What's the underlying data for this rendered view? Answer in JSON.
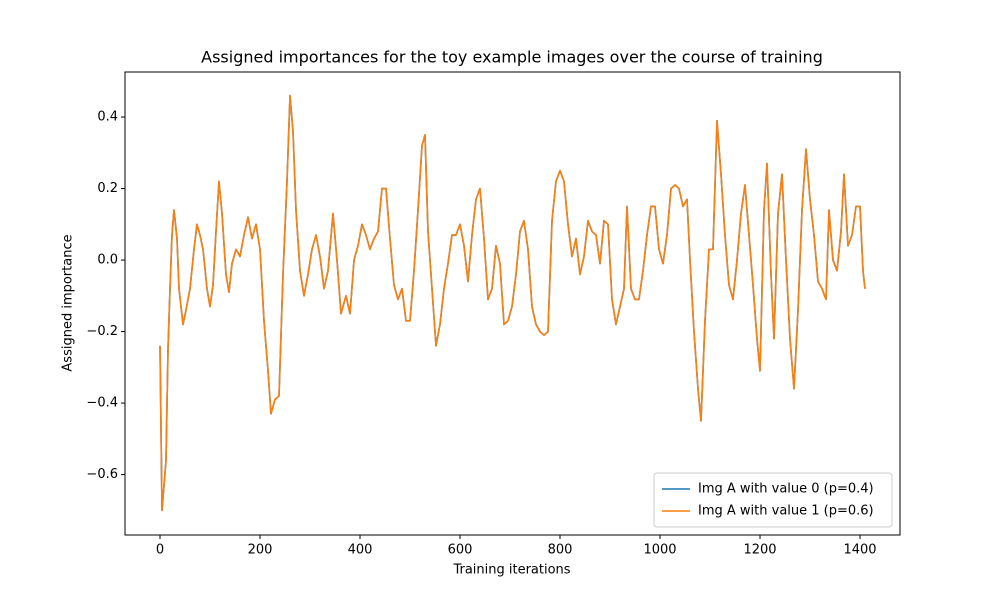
{
  "chart_data": {
    "type": "line",
    "title": "Assigned importances for the toy example images over the course of training",
    "xlabel": "Training iterations",
    "ylabel": "Assigned importance",
    "x": [
      0,
      4,
      12,
      16,
      20,
      24,
      28,
      34,
      38,
      46,
      52,
      60,
      68,
      74,
      80,
      86,
      94,
      100,
      106,
      112,
      118,
      124,
      132,
      138,
      144,
      152,
      160,
      168,
      176,
      184,
      192,
      200,
      208,
      216,
      222,
      230,
      238,
      246,
      254,
      260,
      266,
      272,
      280,
      288,
      296,
      304,
      312,
      320,
      328,
      336,
      346,
      354,
      362,
      372,
      380,
      388,
      396,
      404,
      412,
      420,
      428,
      436,
      444,
      452,
      460,
      468,
      476,
      484,
      492,
      500,
      508,
      516,
      524,
      530,
      536,
      544,
      552,
      560,
      568,
      576,
      584,
      592,
      600,
      608,
      616,
      624,
      632,
      640,
      648,
      656,
      664,
      672,
      680,
      688,
      696,
      704,
      712,
      720,
      728,
      736,
      744,
      752,
      760,
      768,
      776,
      784,
      792,
      800,
      808,
      816,
      824,
      832,
      840,
      848,
      856,
      864,
      872,
      880,
      888,
      896,
      904,
      912,
      920,
      928,
      934,
      942,
      950,
      958,
      966,
      974,
      982,
      990,
      998,
      1006,
      1014,
      1022,
      1030,
      1038,
      1046,
      1054,
      1060,
      1068,
      1076,
      1082,
      1090,
      1098,
      1106,
      1114,
      1122,
      1130,
      1138,
      1146,
      1154,
      1162,
      1170,
      1178,
      1186,
      1194,
      1200,
      1208,
      1214,
      1222,
      1228,
      1236,
      1244,
      1252,
      1260,
      1268,
      1276,
      1284,
      1292,
      1300,
      1308,
      1316,
      1324,
      1332,
      1338,
      1346,
      1354,
      1362,
      1368,
      1376,
      1384,
      1392,
      1400,
      1406,
      1410
    ],
    "series": [
      {
        "name": "Img A with value 0 (p=0.4)",
        "color": "#1f77b4",
        "values": [
          -0.24,
          -0.7,
          -0.56,
          -0.25,
          -0.08,
          0.07,
          0.14,
          0.06,
          -0.08,
          -0.18,
          -0.14,
          -0.08,
          0.03,
          0.1,
          0.07,
          0.03,
          -0.08,
          -0.13,
          -0.07,
          0.08,
          0.22,
          0.13,
          -0.04,
          -0.09,
          -0.01,
          0.03,
          0.01,
          0.07,
          0.12,
          0.06,
          0.1,
          0.03,
          -0.17,
          -0.31,
          -0.43,
          -0.39,
          -0.38,
          -0.04,
          0.22,
          0.46,
          0.36,
          0.14,
          -0.03,
          -0.1,
          -0.04,
          0.03,
          0.07,
          0.01,
          -0.08,
          -0.03,
          0.13,
          0.0,
          -0.15,
          -0.1,
          -0.15,
          0.0,
          0.04,
          0.1,
          0.07,
          0.03,
          0.06,
          0.08,
          0.2,
          0.2,
          0.06,
          -0.07,
          -0.11,
          -0.08,
          -0.17,
          -0.17,
          -0.03,
          0.14,
          0.32,
          0.35,
          0.08,
          -0.08,
          -0.24,
          -0.18,
          -0.08,
          -0.01,
          0.07,
          0.07,
          0.1,
          0.04,
          -0.06,
          0.07,
          0.17,
          0.2,
          0.06,
          -0.11,
          -0.08,
          0.04,
          -0.01,
          -0.18,
          -0.17,
          -0.13,
          -0.04,
          0.08,
          0.11,
          0.03,
          -0.13,
          -0.18,
          -0.2,
          -0.21,
          -0.2,
          0.11,
          0.22,
          0.25,
          0.22,
          0.1,
          0.01,
          0.06,
          -0.04,
          0.01,
          0.11,
          0.08,
          0.07,
          -0.01,
          0.11,
          0.1,
          -0.11,
          -0.18,
          -0.13,
          -0.08,
          0.15,
          -0.08,
          -0.11,
          -0.11,
          -0.03,
          0.07,
          0.15,
          0.15,
          0.03,
          -0.01,
          0.07,
          0.2,
          0.21,
          0.2,
          0.15,
          0.17,
          0.0,
          -0.2,
          -0.36,
          -0.45,
          -0.17,
          0.03,
          0.03,
          0.39,
          0.24,
          0.07,
          -0.07,
          -0.11,
          0.0,
          0.13,
          0.21,
          0.07,
          -0.07,
          -0.22,
          -0.31,
          0.14,
          0.27,
          -0.04,
          -0.22,
          0.13,
          0.24,
          0.0,
          -0.22,
          -0.36,
          -0.14,
          0.14,
          0.31,
          0.17,
          0.07,
          -0.06,
          -0.08,
          -0.11,
          0.14,
          0.0,
          -0.03,
          0.08,
          0.24,
          0.04,
          0.07,
          0.15,
          0.15,
          -0.03,
          -0.08
        ]
      },
      {
        "name": "Img A with value 1 (p=0.6)",
        "color": "#ff7f0e",
        "values": [
          -0.24,
          -0.7,
          -0.56,
          -0.25,
          -0.08,
          0.07,
          0.14,
          0.06,
          -0.08,
          -0.18,
          -0.14,
          -0.08,
          0.03,
          0.1,
          0.07,
          0.03,
          -0.08,
          -0.13,
          -0.07,
          0.08,
          0.22,
          0.13,
          -0.04,
          -0.09,
          -0.01,
          0.03,
          0.01,
          0.07,
          0.12,
          0.06,
          0.1,
          0.03,
          -0.17,
          -0.31,
          -0.43,
          -0.39,
          -0.38,
          -0.04,
          0.22,
          0.46,
          0.36,
          0.14,
          -0.03,
          -0.1,
          -0.04,
          0.03,
          0.07,
          0.01,
          -0.08,
          -0.03,
          0.13,
          0.0,
          -0.15,
          -0.1,
          -0.15,
          0.0,
          0.04,
          0.1,
          0.07,
          0.03,
          0.06,
          0.08,
          0.2,
          0.2,
          0.06,
          -0.07,
          -0.11,
          -0.08,
          -0.17,
          -0.17,
          -0.03,
          0.14,
          0.32,
          0.35,
          0.08,
          -0.08,
          -0.24,
          -0.18,
          -0.08,
          -0.01,
          0.07,
          0.07,
          0.1,
          0.04,
          -0.06,
          0.07,
          0.17,
          0.2,
          0.06,
          -0.11,
          -0.08,
          0.04,
          -0.01,
          -0.18,
          -0.17,
          -0.13,
          -0.04,
          0.08,
          0.11,
          0.03,
          -0.13,
          -0.18,
          -0.2,
          -0.21,
          -0.2,
          0.11,
          0.22,
          0.25,
          0.22,
          0.1,
          0.01,
          0.06,
          -0.04,
          0.01,
          0.11,
          0.08,
          0.07,
          -0.01,
          0.11,
          0.1,
          -0.11,
          -0.18,
          -0.13,
          -0.08,
          0.15,
          -0.08,
          -0.11,
          -0.11,
          -0.03,
          0.07,
          0.15,
          0.15,
          0.03,
          -0.01,
          0.07,
          0.2,
          0.21,
          0.2,
          0.15,
          0.17,
          0.0,
          -0.2,
          -0.36,
          -0.45,
          -0.17,
          0.03,
          0.03,
          0.39,
          0.24,
          0.07,
          -0.07,
          -0.11,
          0.0,
          0.13,
          0.21,
          0.07,
          -0.07,
          -0.22,
          -0.31,
          0.14,
          0.27,
          -0.04,
          -0.22,
          0.13,
          0.24,
          0.0,
          -0.22,
          -0.36,
          -0.14,
          0.14,
          0.31,
          0.17,
          0.07,
          -0.06,
          -0.08,
          -0.11,
          0.14,
          0.0,
          -0.03,
          0.08,
          0.24,
          0.04,
          0.07,
          0.15,
          0.15,
          -0.03,
          -0.08
        ]
      }
    ],
    "xlim": [
      -70,
      1480
    ],
    "ylim": [
      -0.769,
      0.526
    ],
    "xticks": [
      0,
      200,
      400,
      600,
      800,
      1000,
      1200,
      1400
    ],
    "yticks": [
      {
        "value": -0.6,
        "label": "−0.6"
      },
      {
        "value": -0.4,
        "label": "−0.4"
      },
      {
        "value": -0.2,
        "label": "−0.2"
      },
      {
        "value": 0,
        "label": "0.0"
      },
      0.2,
      0.4
    ],
    "legend": "lower right"
  }
}
